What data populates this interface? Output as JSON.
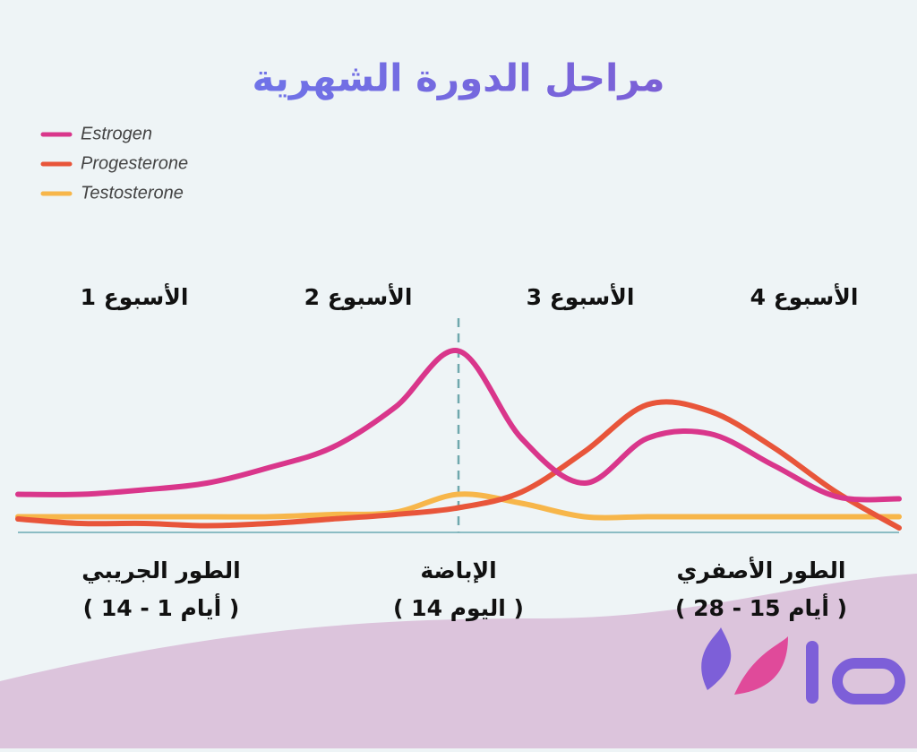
{
  "chart_data": {
    "type": "line",
    "title": "مراحل الدورة الشهرية",
    "categories": [
      null,
      null,
      null,
      null,
      null,
      null,
      null,
      null,
      null,
      null,
      null,
      null,
      null,
      null,
      null
    ],
    "series": [
      {
        "name": "Estrogen",
        "color": "#d9368b",
        "values": [
          17,
          17,
          19,
          22,
          29,
          38,
          56,
          81,
          42,
          22,
          42,
          44,
          30,
          16,
          15
        ]
      },
      {
        "name": "Progesterone",
        "color": "#e8553a",
        "values": [
          6,
          4,
          4,
          3,
          4,
          6,
          8,
          11,
          18,
          36,
          57,
          54,
          38,
          18,
          2
        ]
      },
      {
        "name": "Testosterone",
        "color": "#f7b64a",
        "values": [
          7,
          7,
          7,
          7,
          7,
          8,
          9,
          17,
          13,
          7,
          7,
          7,
          7,
          7,
          7
        ]
      }
    ],
    "ylim": [
      0,
      100
    ],
    "legend": "top-left",
    "weeks": [
      "الأسبوع 1",
      "الأسبوع 2",
      "الأسبوع 3",
      "الأسبوع 4"
    ],
    "phases": [
      {
        "name": "الطور الجريبي",
        "days": "( أيام 1 - 14 )"
      },
      {
        "name": "الإباضة",
        "days": "( اليوم 14 )"
      },
      {
        "name": "الطور الأصفري",
        "days": "( أيام 15 - 28 )"
      }
    ]
  }
}
